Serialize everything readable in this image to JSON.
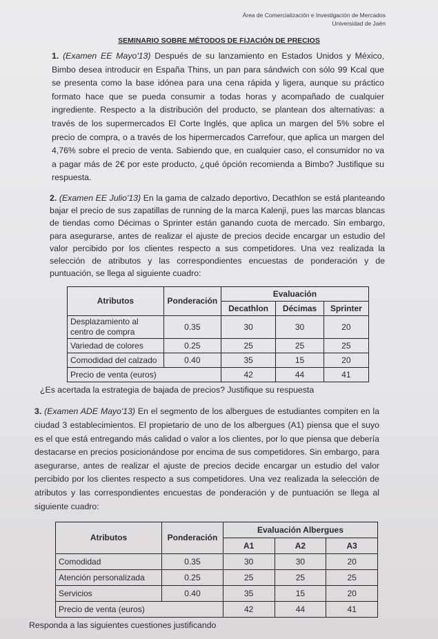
{
  "header": {
    "line1": "Área de Comercialización e Investigación de Mercados",
    "line2": "Universidad de Jaén"
  },
  "title": "SEMINARIO SOBRE MÉTODOS DE FIJACIÓN DE PRECIOS",
  "q1": {
    "num": "1.",
    "source": "(Examen EE Mayo'13)",
    "text": " Después de su lanzamiento en Estados Unidos y México, Bimbo desea introducir en España Thins, un pan para sándwich con sólo 99 Kcal que se presenta como la base idónea para una cena rápida y ligera, aunque su práctico formato hace que se pueda consumir a todas horas y acompañado de cualquier ingrediente. Respecto a la distribución del producto, se plantean dos alternativas: a través de los supermercados El Corte Inglés, que aplica un margen del 5% sobre el precio de compra, o a través de los hipermercados Carrefour, que aplica un margen del 4,76% sobre el precio de venta. Sabiendo que, en cualquier caso, el consumidor no va a pagar más de 2€ por este producto, ¿qué ópción recomienda a Bimbo? Justifique su respuesta."
  },
  "q2": {
    "num": "2.",
    "source": "(Examen EE Julio'13)",
    "text": " En la gama de calzado deportivo, Decathlon se está planteando bajar el precio de sus zapatillas de running de la marca Kalenji, pues las marcas blancas de tiendas como Décimas o Sprinter están ganando cuota de mercado. Sin embargo, para asegurarse, antes de realizar el ajuste de precios decide encargar un estudio del valor percibido por los clientes respecto a sus competidores. Una vez realizada la selección de atributos y las correspondientes encuestas de ponderación y de puntuación, se llega al siguiente cuadro:",
    "table": {
      "h_attr": "Atributos",
      "h_pond": "Ponderación",
      "h_eval": "Evaluación",
      "cols": [
        "Decathlon",
        "Décimas",
        "Sprinter"
      ],
      "rows": [
        {
          "attr": "Desplazamiento al centro de compra",
          "pond": "0.35",
          "vals": [
            "30",
            "30",
            "20"
          ]
        },
        {
          "attr": "Variedad de colores",
          "pond": "0.25",
          "vals": [
            "25",
            "25",
            "25"
          ]
        },
        {
          "attr": "Comodidad del calzado",
          "pond": "0.40",
          "vals": [
            "35",
            "15",
            "20"
          ]
        }
      ],
      "price": {
        "attr": "Precio de venta (euros)",
        "vals": [
          "42",
          "44",
          "41"
        ]
      }
    },
    "question": "¿Es acertada la estrategia de bajada de precios? Justifique su respuesta"
  },
  "q3": {
    "num": "3.",
    "source": "(Examen ADE Mayo'13)",
    "text": " En el segmento de los albergues de estudiantes compiten en la ciudad 3 establecimientos. El propietario de uno de los albergues (A1) piensa que el suyo es el que está entregando más calidad o valor a los clientes, por lo que piensa que debería destacarse en precios posicionándose por encima de sus competidores. Sin embargo, para asegurarse, antes de realizar el ajuste de precios decide encargar un estudio del valor percibido por los clientes respecto a sus competidores. Una vez realizada la selección de atributos y las correspondientes encuestas de ponderación y de puntuación se llega al siguiente cuadro:",
    "table": {
      "h_attr": "Atributos",
      "h_pond": "Ponderación",
      "h_eval": "Evaluación Albergues",
      "cols": [
        "A1",
        "A2",
        "A3"
      ],
      "rows": [
        {
          "attr": "Comodidad",
          "pond": "0.35",
          "vals": [
            "30",
            "30",
            "20"
          ]
        },
        {
          "attr": "Atención personalizada",
          "pond": "0.25",
          "vals": [
            "25",
            "25",
            "25"
          ]
        },
        {
          "attr": "Servicios",
          "pond": "0.40",
          "vals": [
            "35",
            "15",
            "20"
          ]
        }
      ],
      "price": {
        "attr": "Precio de venta (euros)",
        "vals": [
          "42",
          "44",
          "41"
        ]
      }
    },
    "footer": "Responda a las siguientes cuestiones justificando"
  }
}
